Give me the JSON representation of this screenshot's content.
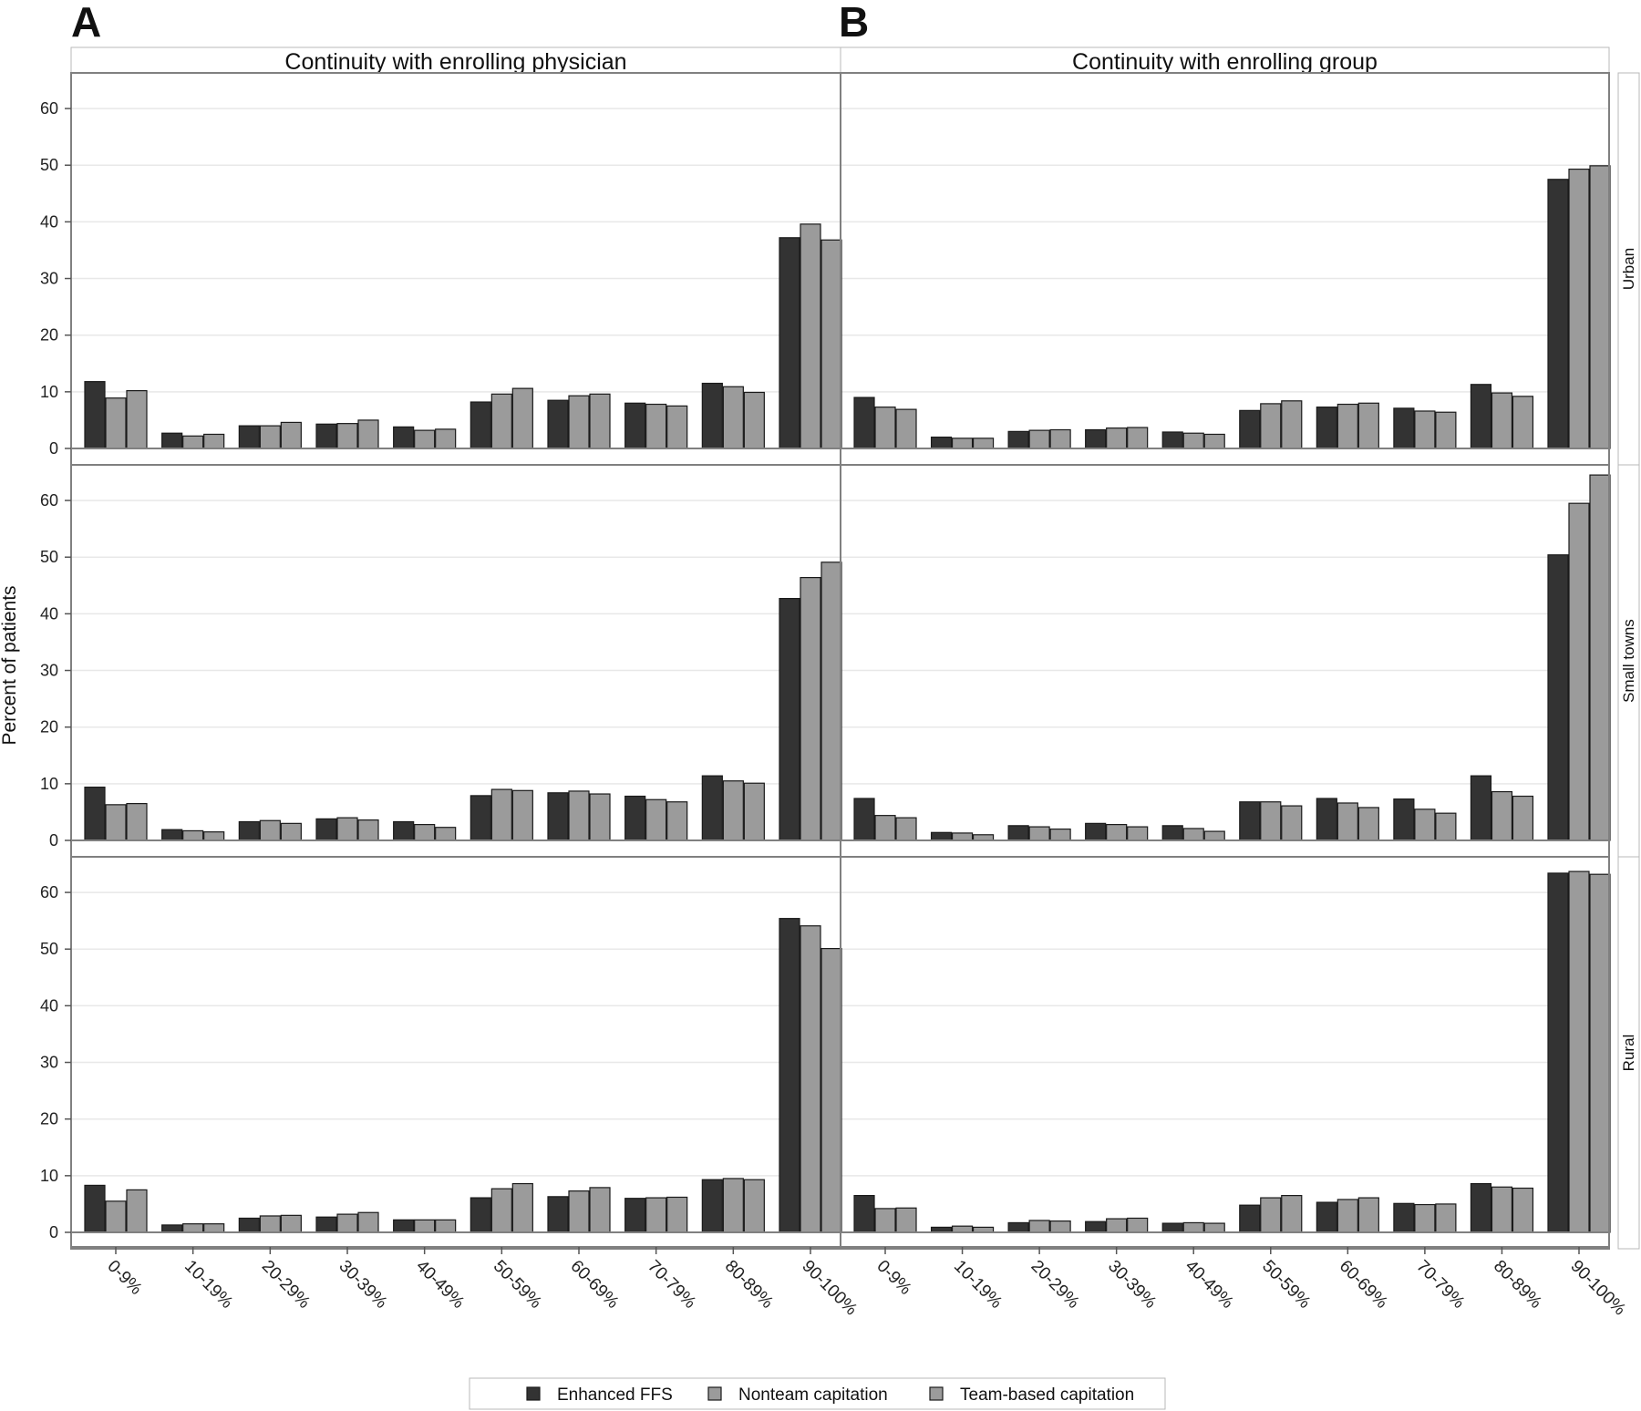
{
  "figure": {
    "panel_labels": [
      "A",
      "B"
    ],
    "legend": {
      "entries": [
        "Enhanced FFS",
        "Nonteam capitation",
        "Team-based capitation"
      ]
    }
  },
  "colors": {
    "Enhanced FFS": "#333333",
    "Nonteam capitation": "#9b9b9b",
    "Team-based capitation": "#9b9b9b",
    "bar_stroke": "#1a1a1a",
    "frame": "#808080",
    "grid": "#e8e8e8"
  },
  "chart_data": {
    "type": "bar",
    "ylabel": "Percent of patients",
    "ylim": [
      0,
      65
    ],
    "yticks": [
      0,
      10,
      20,
      30,
      40,
      50,
      60
    ],
    "grid": true,
    "legend_position": "bottom",
    "categories": [
      "0-9%",
      "10-19%",
      "20-29%",
      "30-39%",
      "40-49%",
      "50-59%",
      "60-69%",
      "70-79%",
      "80-89%",
      "90-100%"
    ],
    "columns": [
      "Continuity with enrolling physician",
      "Continuity with enrolling group"
    ],
    "rows": [
      "Urban",
      "Small towns",
      "Rural"
    ],
    "panels": [
      {
        "column": "Continuity with enrolling physician",
        "row": "Urban",
        "series": [
          {
            "name": "Enhanced FFS",
            "values": [
              11.8,
              2.7,
              4.0,
              4.3,
              3.8,
              8.2,
              8.5,
              8.0,
              11.5,
              37.2
            ]
          },
          {
            "name": "Nonteam capitation",
            "values": [
              8.9,
              2.2,
              4.0,
              4.4,
              3.2,
              9.6,
              9.3,
              7.8,
              10.9,
              39.6
            ]
          },
          {
            "name": "Team-based capitation",
            "values": [
              10.2,
              2.5,
              4.6,
              5.0,
              3.4,
              10.6,
              9.6,
              7.5,
              9.9,
              36.8
            ]
          }
        ]
      },
      {
        "column": "Continuity with enrolling group",
        "row": "Urban",
        "series": [
          {
            "name": "Enhanced FFS",
            "values": [
              9.0,
              2.0,
              3.0,
              3.3,
              2.9,
              6.7,
              7.3,
              7.1,
              11.3,
              47.5
            ]
          },
          {
            "name": "Nonteam capitation",
            "values": [
              7.3,
              1.8,
              3.2,
              3.6,
              2.7,
              7.9,
              7.8,
              6.6,
              9.8,
              49.3
            ]
          },
          {
            "name": "Team-based capitation",
            "values": [
              6.9,
              1.8,
              3.3,
              3.7,
              2.5,
              8.4,
              8.0,
              6.4,
              9.2,
              49.9
            ]
          }
        ]
      },
      {
        "column": "Continuity with enrolling physician",
        "row": "Small towns",
        "series": [
          {
            "name": "Enhanced FFS",
            "values": [
              9.4,
              1.9,
              3.3,
              3.8,
              3.3,
              7.9,
              8.4,
              7.8,
              11.4,
              42.7
            ]
          },
          {
            "name": "Nonteam capitation",
            "values": [
              6.3,
              1.7,
              3.5,
              4.0,
              2.8,
              9.0,
              8.7,
              7.2,
              10.5,
              46.4
            ]
          },
          {
            "name": "Team-based capitation",
            "values": [
              6.5,
              1.5,
              3.0,
              3.6,
              2.3,
              8.8,
              8.2,
              6.8,
              10.1,
              49.1
            ]
          }
        ]
      },
      {
        "column": "Continuity with enrolling group",
        "row": "Small towns",
        "series": [
          {
            "name": "Enhanced FFS",
            "values": [
              7.4,
              1.4,
              2.6,
              3.0,
              2.6,
              6.8,
              7.4,
              7.3,
              11.4,
              50.4
            ]
          },
          {
            "name": "Nonteam capitation",
            "values": [
              4.4,
              1.3,
              2.4,
              2.8,
              2.1,
              6.8,
              6.6,
              5.5,
              8.6,
              59.5
            ]
          },
          {
            "name": "Team-based capitation",
            "values": [
              4.0,
              1.0,
              2.0,
              2.4,
              1.6,
              6.1,
              5.8,
              4.8,
              7.8,
              64.5
            ]
          }
        ]
      },
      {
        "column": "Continuity with enrolling physician",
        "row": "Rural",
        "series": [
          {
            "name": "Enhanced FFS",
            "values": [
              8.3,
              1.3,
              2.5,
              2.7,
              2.2,
              6.1,
              6.3,
              6.0,
              9.3,
              55.4
            ]
          },
          {
            "name": "Nonteam capitation",
            "values": [
              5.5,
              1.5,
              2.9,
              3.2,
              2.2,
              7.7,
              7.3,
              6.1,
              9.5,
              54.1
            ]
          },
          {
            "name": "Team-based capitation",
            "values": [
              7.5,
              1.5,
              3.0,
              3.5,
              2.2,
              8.6,
              7.9,
              6.2,
              9.3,
              50.1
            ]
          }
        ]
      },
      {
        "column": "Continuity with enrolling group",
        "row": "Rural",
        "series": [
          {
            "name": "Enhanced FFS",
            "values": [
              6.5,
              0.9,
              1.7,
              1.9,
              1.6,
              4.8,
              5.3,
              5.1,
              8.6,
              63.4
            ]
          },
          {
            "name": "Nonteam capitation",
            "values": [
              4.2,
              1.1,
              2.1,
              2.4,
              1.7,
              6.1,
              5.8,
              4.9,
              8.0,
              63.7
            ]
          },
          {
            "name": "Team-based capitation",
            "values": [
              4.3,
              0.9,
              2.0,
              2.5,
              1.6,
              6.5,
              6.1,
              5.0,
              7.8,
              63.2
            ]
          }
        ]
      }
    ]
  }
}
